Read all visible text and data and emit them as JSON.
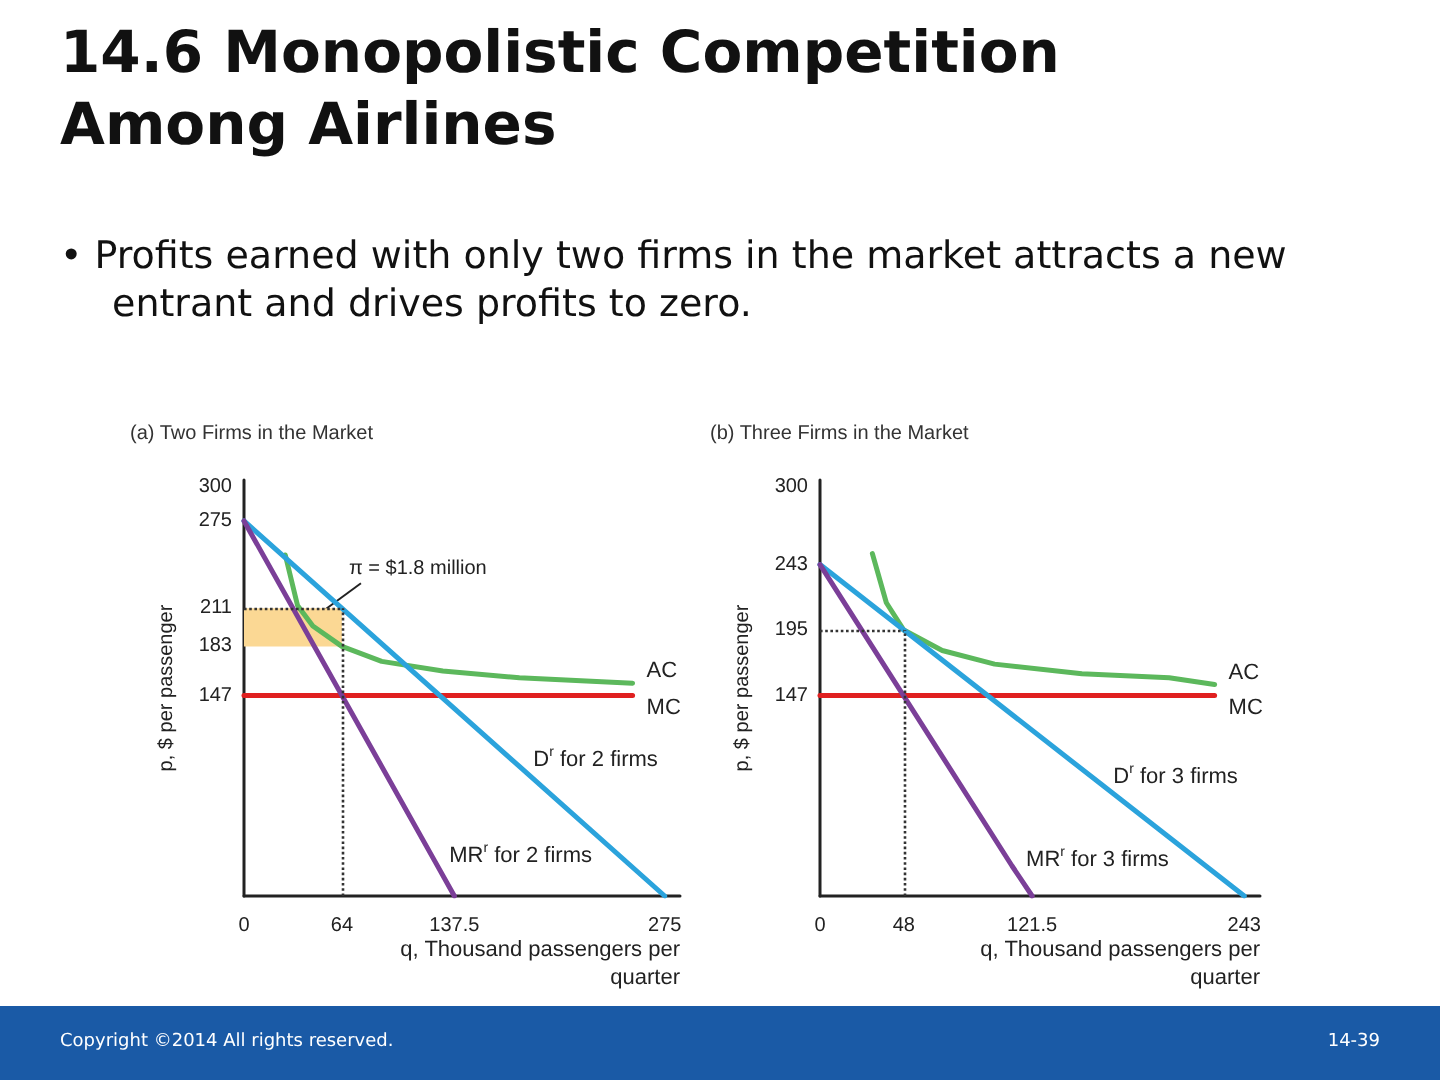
{
  "chart_data": [
    {
      "type": "other",
      "title": "14.6  Monopolistic Competition Among Airlines",
      "subtitle": "• Profits earned with only two firms in the market attracts a new entrant and drives profits to zero.",
      "annotations": [
        "Copyright ©2014 All rights reserved.",
        "14-39"
      ]
    },
    {
      "type": "line",
      "title": "(a) Two Firms in the Market",
      "xlabel": "q, Thousand passengers per quarter",
      "ylabel": "p, $ per passenger",
      "xlim": [
        0,
        285
      ],
      "xticks": [
        0,
        64,
        137.5,
        275
      ],
      "ylim": [
        0,
        305
      ],
      "yticks": [
        147,
        183,
        211,
        275,
        300
      ],
      "grid": false,
      "marker": "none",
      "line_style": "solid",
      "series": [
        {
          "name": "AC",
          "color": "#5cb85c",
          "x": [
            27,
            35,
            45,
            64,
            90,
            130,
            180,
            254
          ],
          "values": [
            250,
            213,
            198,
            183,
            172,
            165,
            160,
            156
          ]
        },
        {
          "name": "MC",
          "color": "#e02020",
          "x": [
            0,
            254
          ],
          "values": [
            147,
            147
          ]
        },
        {
          "name": "D$^{r}$ for 2 firms",
          "color": "#2ba3dc",
          "x": [
            0,
            180,
            275
          ],
          "values": [
            275,
            95,
            0
          ]
        },
        {
          "name": "MR$^{r}$ for 2 firms",
          "color": "#7b3f98",
          "x": [
            0,
            125,
            137.5
          ],
          "values": [
            275,
            25,
            0
          ]
        }
      ],
      "ref_lines": [
        {
          "axis": "y",
          "value": 211,
          "line_style": "dotted"
        },
        {
          "axis": "x",
          "value": 64,
          "line_style": "dotted"
        }
      ],
      "bands": [
        {
          "axis": "y",
          "from": 183,
          "to": 211,
          "color": "#fbd894"
        }
      ],
      "annotations": [
        {
          "text": "π = $1.8 million",
          "x": 32,
          "y": 197
        }
      ]
    },
    {
      "type": "line",
      "title": "(b) Three Firms in the Market",
      "xlabel": "q, Thousand passengers per quarter",
      "ylabel": "p, $ per passenger",
      "xlim": [
        0,
        252
      ],
      "xticks": [
        0,
        48,
        121.5,
        243
      ],
      "ylim": [
        0,
        305
      ],
      "yticks": [
        147,
        195,
        243,
        300
      ],
      "grid": false,
      "marker": "none",
      "line_style": "solid",
      "series": [
        {
          "name": "AC",
          "color": "#5cb85c",
          "x": [
            30,
            38,
            48,
            70,
            100,
            150,
            200,
            226
          ],
          "values": [
            251,
            215,
            195,
            180,
            170,
            163,
            160,
            155
          ]
        },
        {
          "name": "MC",
          "color": "#e02020",
          "x": [
            0,
            226
          ],
          "values": [
            147,
            147
          ]
        },
        {
          "name": "D$^{r}$ for 3 firms",
          "color": "#2ba3dc",
          "x": [
            0,
            160,
            243
          ],
          "values": [
            243,
            83,
            0
          ]
        },
        {
          "name": "MR$^{r}$ for 3 firms",
          "color": "#7b3f98",
          "x": [
            0,
            110,
            121.5
          ],
          "values": [
            243,
            22,
            0
          ]
        }
      ],
      "ref_lines": [
        {
          "axis": "y",
          "value": 195,
          "line_style": "dotted"
        },
        {
          "axis": "x",
          "value": 48,
          "line_style": "dotted"
        }
      ]
    }
  ]
}
